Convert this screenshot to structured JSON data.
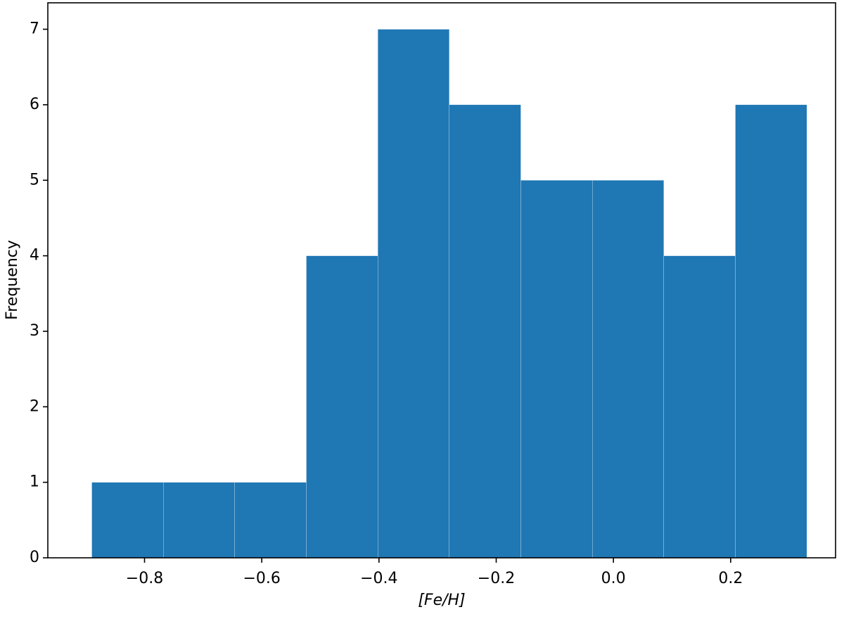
{
  "chart_data": {
    "type": "histogram",
    "xlabel": "[Fe/H]",
    "ylabel": "Frequency",
    "bins": [
      -0.89,
      -0.768,
      -0.646,
      -0.524,
      -0.402,
      -0.28,
      -0.158,
      -0.036,
      0.086,
      0.208,
      0.33
    ],
    "values": [
      1,
      1,
      1,
      4,
      7,
      6,
      5,
      5,
      4,
      6
    ],
    "color": "#1f77b4",
    "xlim": [
      -0.965,
      0.379
    ],
    "ylim": [
      0,
      7.35
    ],
    "xticks": [
      {
        "value": -0.8,
        "label": "−0.8"
      },
      {
        "value": -0.6,
        "label": "−0.6"
      },
      {
        "value": -0.4,
        "label": "−0.4"
      },
      {
        "value": -0.2,
        "label": "−0.2"
      },
      {
        "value": 0,
        "label": "0.0"
      },
      0.2
    ],
    "yticks": [
      0,
      1,
      2,
      3,
      4,
      5,
      6,
      7
    ]
  }
}
